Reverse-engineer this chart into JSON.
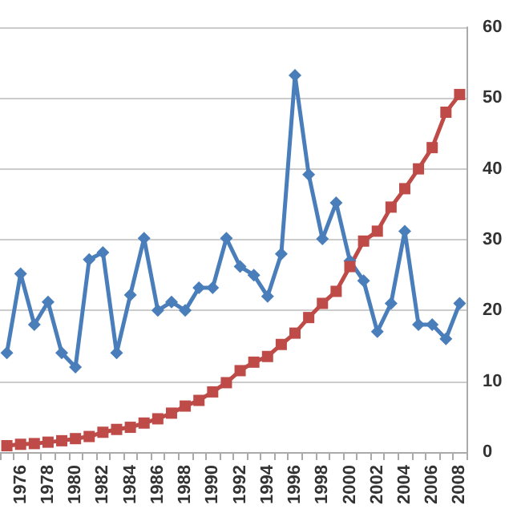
{
  "chart_data": {
    "type": "line",
    "categories": [
      null,
      "1976",
      null,
      "1978",
      null,
      "1980",
      null,
      "1982",
      null,
      "1984",
      null,
      "1986",
      null,
      "1988",
      null,
      "1990",
      null,
      "1992",
      null,
      "1994",
      null,
      "1996",
      null,
      "1998",
      null,
      "2000",
      null,
      "2002",
      null,
      "2004",
      null,
      "2006",
      null,
      "2008"
    ],
    "series": [
      {
        "color": "#4a7ebb",
        "marker": "diamond",
        "values": [
          14,
          25.2,
          18,
          21.2,
          14,
          12,
          27.2,
          28.2,
          14,
          22.2,
          30.2,
          20,
          21.2,
          20,
          23.2,
          23.2,
          30.2,
          26.2,
          25,
          22,
          28,
          53.2,
          39.2,
          30.1,
          35.2,
          27,
          24.2,
          17,
          21,
          31.2,
          18,
          18,
          16,
          21
        ]
      },
      {
        "color": "#be4b48",
        "marker": "square",
        "values": [
          0.9,
          1.1,
          1.2,
          1.4,
          1.6,
          1.9,
          2.2,
          2.8,
          3.2,
          3.5,
          4.1,
          4.7,
          5.5,
          6.5,
          7.3,
          8.5,
          9.8,
          11.5,
          12.7,
          13.5,
          15.2,
          16.8,
          19,
          21,
          22.7,
          26.2,
          29.8,
          31.2,
          34.6,
          37.2,
          40,
          43,
          48,
          50.5
        ]
      }
    ],
    "ylim": [
      0,
      60
    ],
    "yticks": [
      0,
      10,
      20,
      30,
      40,
      50,
      60
    ],
    "grid": "y",
    "line_style": "solid"
  }
}
